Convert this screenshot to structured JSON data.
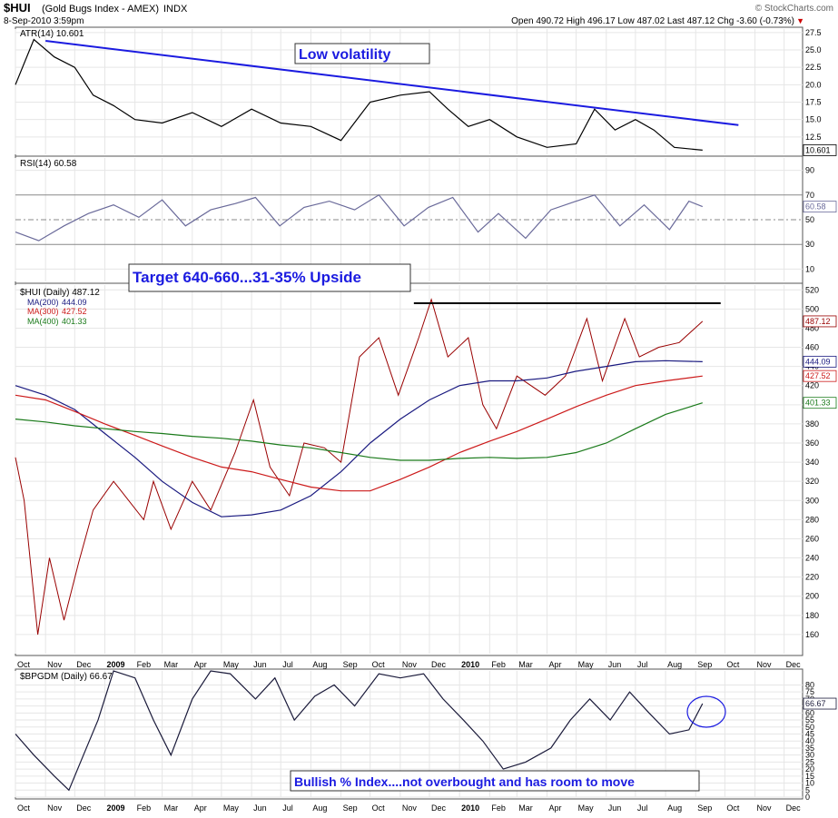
{
  "header": {
    "symbol": "$HUI",
    "name": "(Gold Bugs Index - AMEX)",
    "type": "INDX",
    "date": "8-Sep-2010 3:59pm",
    "brand": "© StockCharts.com",
    "ohlc": "Open 490.72  High 496.17  Low 487.02  Last 487.12  Chg -3.60 (-0.73%)",
    "ohlc_arrow": "▼"
  },
  "annotations": {
    "low_volatility": "Low volatility",
    "target": "Target 640-660...31-35% Upside",
    "bullish": "Bullish % Index....not overbought and has room to move"
  },
  "chart_data": [
    {
      "type": "line",
      "title": "ATR(14) 10.601",
      "series": [
        {
          "name": "ATR(14)",
          "color": "#000000",
          "last": "10.601",
          "x": [
            "2008-10-01",
            "2008-10-20",
            "2008-11-10",
            "2008-12-01",
            "2008-12-20",
            "2009-01-10",
            "2009-02-01",
            "2009-03-01",
            "2009-04-01",
            "2009-05-01",
            "2009-06-01",
            "2009-07-01",
            "2009-08-01",
            "2009-09-01",
            "2009-10-01",
            "2009-11-01",
            "2009-12-01",
            "2009-12-20",
            "2010-01-10",
            "2010-02-01",
            "2010-03-01",
            "2010-04-01",
            "2010-05-01",
            "2010-05-20",
            "2010-06-10",
            "2010-07-01",
            "2010-07-20",
            "2010-08-10",
            "2010-09-08"
          ],
          "values": [
            20,
            26.5,
            24,
            22.5,
            18.5,
            17,
            15,
            14.5,
            16,
            14,
            16.5,
            14.5,
            14,
            12,
            17.5,
            18.5,
            19,
            16.5,
            14,
            15,
            12.5,
            11,
            11.5,
            16.5,
            13.5,
            15,
            13.5,
            11,
            10.6
          ]
        }
      ],
      "ylim": [
        10,
        28
      ],
      "yticks": [
        "12.5",
        "15.0",
        "17.5",
        "20.0",
        "22.5",
        "25.0",
        "27.5"
      ],
      "trendline": {
        "x": [
          "2008-11-01",
          "2010-10-15"
        ],
        "values": [
          26.3,
          14.2
        ],
        "color": "#1b1be0"
      }
    },
    {
      "type": "line",
      "title": "RSI(14) 60.58",
      "series": [
        {
          "name": "RSI(14)",
          "color": "#6a6a9a",
          "last": "60.58",
          "x": [
            "2008-10-01",
            "2008-10-25",
            "2008-11-20",
            "2008-12-15",
            "2009-01-10",
            "2009-02-05",
            "2009-03-01",
            "2009-03-25",
            "2009-04-20",
            "2009-05-15",
            "2009-06-05",
            "2009-06-30",
            "2009-07-25",
            "2009-08-20",
            "2009-09-15",
            "2009-10-10",
            "2009-11-05",
            "2009-11-30",
            "2009-12-25",
            "2010-01-20",
            "2010-02-10",
            "2010-03-10",
            "2010-04-05",
            "2010-05-01",
            "2010-05-20",
            "2010-06-15",
            "2010-07-10",
            "2010-08-05",
            "2010-08-25",
            "2010-09-08"
          ],
          "values": [
            40,
            33,
            45,
            55,
            62,
            52,
            66,
            45,
            58,
            63,
            68,
            45,
            60,
            65,
            58,
            70,
            45,
            60,
            68,
            40,
            55,
            35,
            58,
            65,
            70,
            45,
            62,
            42,
            65,
            60.58
          ]
        }
      ],
      "ylim": [
        0,
        100
      ],
      "yticks": [
        "10",
        "30",
        "50",
        "70",
        "90"
      ]
    },
    {
      "type": "line",
      "title": "$HUI (Daily) 487.12",
      "series": [
        {
          "name": "$HUI",
          "color": "#990000",
          "last": "487.12",
          "x": [
            "2008-10-01",
            "2008-10-10",
            "2008-10-24",
            "2008-11-05",
            "2008-11-20",
            "2008-12-05",
            "2008-12-20",
            "2009-01-10",
            "2009-02-10",
            "2009-02-20",
            "2009-03-10",
            "2009-04-01",
            "2009-04-20",
            "2009-05-15",
            "2009-06-03",
            "2009-06-20",
            "2009-07-10",
            "2009-07-25",
            "2009-08-15",
            "2009-09-01",
            "2009-09-20",
            "2009-10-10",
            "2009-10-30",
            "2009-11-20",
            "2009-12-03",
            "2009-12-20",
            "2010-01-10",
            "2010-01-25",
            "2010-02-08",
            "2010-03-01",
            "2010-03-30",
            "2010-04-20",
            "2010-05-12",
            "2010-05-28",
            "2010-06-20",
            "2010-07-05",
            "2010-07-25",
            "2010-08-15",
            "2010-09-08"
          ],
          "values": [
            345,
            300,
            160,
            240,
            175,
            235,
            290,
            320,
            280,
            320,
            270,
            320,
            290,
            350,
            405,
            335,
            305,
            360,
            355,
            340,
            450,
            470,
            410,
            470,
            510,
            450,
            470,
            400,
            375,
            430,
            410,
            430,
            490,
            425,
            490,
            450,
            460,
            465,
            487.12
          ]
        },
        {
          "name": "MA(200)",
          "color": "#1a1a80",
          "last": "444.09",
          "x": [
            "2008-10-01",
            "2008-11-01",
            "2008-12-01",
            "2009-01-01",
            "2009-02-01",
            "2009-03-01",
            "2009-04-01",
            "2009-05-01",
            "2009-06-01",
            "2009-07-01",
            "2009-08-01",
            "2009-09-01",
            "2009-10-01",
            "2009-11-01",
            "2009-12-01",
            "2010-01-01",
            "2010-02-01",
            "2010-03-01",
            "2010-04-01",
            "2010-05-01",
            "2010-06-01",
            "2010-07-01",
            "2010-08-01",
            "2010-09-08"
          ],
          "values": [
            420,
            410,
            395,
            370,
            345,
            320,
            298,
            283,
            285,
            290,
            305,
            330,
            360,
            385,
            405,
            420,
            425,
            425,
            428,
            435,
            440,
            445,
            446,
            445
          ]
        },
        {
          "name": "MA(300)",
          "color": "#cc1a1a",
          "last": "427.52",
          "x": [
            "2008-10-01",
            "2008-11-01",
            "2008-12-01",
            "2009-01-01",
            "2009-02-01",
            "2009-03-01",
            "2009-04-01",
            "2009-05-01",
            "2009-06-01",
            "2009-07-01",
            "2009-08-01",
            "2009-09-01",
            "2009-10-01",
            "2009-11-01",
            "2009-12-01",
            "2010-01-01",
            "2010-02-01",
            "2010-03-01",
            "2010-04-01",
            "2010-05-01",
            "2010-06-01",
            "2010-07-01",
            "2010-08-01",
            "2010-09-08"
          ],
          "values": [
            410,
            405,
            393,
            380,
            368,
            357,
            345,
            335,
            330,
            322,
            314,
            310,
            310,
            322,
            335,
            350,
            362,
            372,
            385,
            398,
            410,
            420,
            425,
            430
          ]
        },
        {
          "name": "MA(400)",
          "color": "#1a7a1a",
          "last": "401.33",
          "x": [
            "2008-10-01",
            "2008-11-01",
            "2008-12-01",
            "2009-01-01",
            "2009-02-01",
            "2009-03-01",
            "2009-04-01",
            "2009-05-01",
            "2009-06-01",
            "2009-07-01",
            "2009-08-01",
            "2009-09-01",
            "2009-10-01",
            "2009-11-01",
            "2009-12-01",
            "2010-01-01",
            "2010-02-01",
            "2010-03-01",
            "2010-04-01",
            "2010-05-01",
            "2010-06-01",
            "2010-07-01",
            "2010-08-01",
            "2010-09-08"
          ],
          "values": [
            385,
            382,
            378,
            375,
            372,
            370,
            367,
            365,
            362,
            358,
            355,
            350,
            345,
            342,
            342,
            344,
            345,
            344,
            345,
            350,
            360,
            375,
            390,
            402
          ]
        }
      ],
      "resistance": {
        "x": [
          "2009-11-15",
          "2010-09-08"
        ],
        "value": 506
      },
      "ylim": [
        140,
        525
      ],
      "yticks": [
        "160",
        "180",
        "200",
        "220",
        "240",
        "260",
        "280",
        "300",
        "320",
        "340",
        "360",
        "380",
        "400",
        "420",
        "440",
        "460",
        "480",
        "500",
        "520"
      ],
      "x_labels": [
        "Oct",
        "Nov",
        "Dec",
        "2009",
        "Feb",
        "Mar",
        "Apr",
        "May",
        "Jun",
        "Jul",
        "Aug",
        "Sep",
        "Oct",
        "Nov",
        "Dec",
        "2010",
        "Feb",
        "Mar",
        "Apr",
        "May",
        "Jun",
        "Jul",
        "Aug",
        "Sep",
        "Oct",
        "Nov",
        "Dec"
      ]
    },
    {
      "type": "line",
      "title": "$BPGDM (Daily) 66.67",
      "series": [
        {
          "name": "$BPGDM",
          "color": "#1a1a3a",
          "last": "66.67",
          "x": [
            "2008-10-01",
            "2008-10-20",
            "2008-11-10",
            "2008-11-25",
            "2008-12-10",
            "2008-12-25",
            "2009-01-10",
            "2009-02-01",
            "2009-02-20",
            "2009-03-10",
            "2009-04-01",
            "2009-04-20",
            "2009-05-10",
            "2009-06-05",
            "2009-06-25",
            "2009-07-15",
            "2009-08-05",
            "2009-08-25",
            "2009-09-15",
            "2009-10-10",
            "2009-11-01",
            "2009-11-25",
            "2009-12-15",
            "2010-01-05",
            "2010-01-25",
            "2010-02-15",
            "2010-03-10",
            "2010-04-05",
            "2010-04-25",
            "2010-05-15",
            "2010-06-05",
            "2010-06-25",
            "2010-07-15",
            "2010-08-05",
            "2010-08-25",
            "2010-09-08"
          ],
          "values": [
            45,
            30,
            15,
            5,
            30,
            55,
            90,
            85,
            55,
            30,
            70,
            90,
            88,
            70,
            85,
            55,
            72,
            80,
            65,
            88,
            85,
            88,
            70,
            55,
            40,
            20,
            25,
            35,
            55,
            70,
            55,
            75,
            60,
            45,
            48,
            66.67
          ]
        }
      ],
      "ylim": [
        0,
        90
      ],
      "yticks": [
        "0",
        "5",
        "10",
        "15",
        "20",
        "25",
        "30",
        "35",
        "40",
        "45",
        "50",
        "55",
        "60",
        "65",
        "70",
        "75",
        "80"
      ],
      "x_labels": [
        "Oct",
        "Nov",
        "Dec",
        "2009",
        "Feb",
        "Mar",
        "Apr",
        "May",
        "Jun",
        "Jul",
        "Aug",
        "Sep",
        "Oct",
        "Nov",
        "Dec",
        "2010",
        "Feb",
        "Mar",
        "Apr",
        "May",
        "Jun",
        "Jul",
        "Aug",
        "Sep",
        "Oct",
        "Nov",
        "Dec"
      ]
    }
  ]
}
